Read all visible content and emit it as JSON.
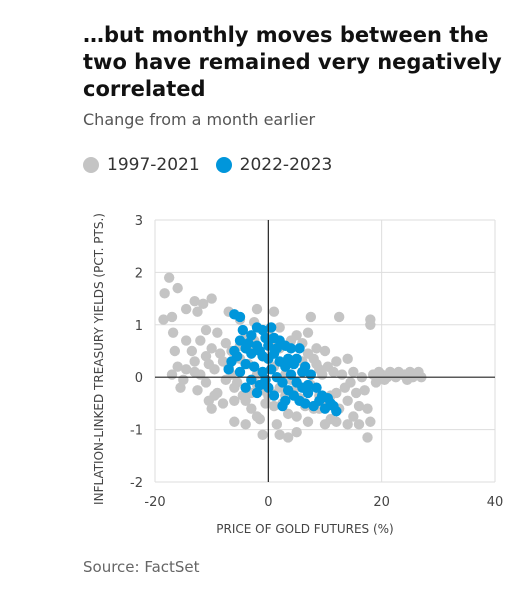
{
  "title": "…but monthly moves between the two have remained very negatively correlated",
  "subtitle": "Change from a month earlier",
  "source": "Source: FactSet",
  "colors": {
    "series_1997_2021": "#c4c4c4",
    "series_2022_2023": "#0096db"
  },
  "chart_data": {
    "type": "scatter",
    "title": "…but monthly moves between the two have remained very negatively correlated",
    "subtitle": "Change from a month earlier",
    "xlabel": "PRICE OF GOLD FUTURES (%)",
    "ylabel": "INFLATION-LINKED TREASURY YIELDS (PCT. PTS.)",
    "xlim": [
      -20,
      40
    ],
    "ylim": [
      -2,
      3
    ],
    "xticks": [
      "-20",
      "0",
      "20",
      "40"
    ],
    "yticks": [
      "3",
      "2",
      "1",
      "0",
      "-1",
      "-2"
    ],
    "grid": true,
    "legend_position": "top-left",
    "series": [
      {
        "name": "1997-2021",
        "color": "#c4c4c4",
        "points": [
          [
            -17.5,
            1.9
          ],
          [
            -18.3,
            1.6
          ],
          [
            -16,
            1.7
          ],
          [
            -17,
            1.15
          ],
          [
            -18.5,
            1.1
          ],
          [
            -14.5,
            1.3
          ],
          [
            -13,
            1.45
          ],
          [
            -11.5,
            1.4
          ],
          [
            -16.8,
            0.85
          ],
          [
            -14.5,
            0.7
          ],
          [
            -13.5,
            0.5
          ],
          [
            -16.5,
            0.5
          ],
          [
            -12,
            0.7
          ],
          [
            -11,
            0.9
          ],
          [
            -10,
            0.55
          ],
          [
            -14.5,
            0.15
          ],
          [
            -17,
            0.05
          ],
          [
            -15.5,
            -0.2
          ],
          [
            -13,
            0.3
          ],
          [
            -12,
            0.05
          ],
          [
            -11,
            -0.1
          ],
          [
            -10.5,
            0.25
          ],
          [
            -9.5,
            0.15
          ],
          [
            -9,
            -0.3
          ],
          [
            -8,
            -0.5
          ],
          [
            -7,
            0.2
          ],
          [
            -10,
            -0.6
          ],
          [
            -6,
            -0.45
          ],
          [
            -6.5,
            0.5
          ],
          [
            -8.5,
            0.45
          ],
          [
            -5.5,
            -0.1
          ],
          [
            -5,
            0.6
          ],
          [
            -4.5,
            -0.35
          ],
          [
            -3.5,
            0.25
          ],
          [
            -3,
            -0.6
          ],
          [
            -2.5,
            0.7
          ],
          [
            -2,
            -0.15
          ],
          [
            -1.5,
            -0.8
          ],
          [
            -1,
            0.4
          ],
          [
            -0.5,
            -0.5
          ],
          [
            0,
            0.85
          ],
          [
            0.5,
            -0.3
          ],
          [
            1,
            0.2
          ],
          [
            1.5,
            -0.9
          ],
          [
            2,
            0.55
          ],
          [
            2.5,
            -0.5
          ],
          [
            3,
            0.05
          ],
          [
            3.5,
            -0.7
          ],
          [
            4,
            0.3
          ],
          [
            4.5,
            -0.25
          ],
          [
            5,
            0.8
          ],
          [
            5.5,
            -0.4
          ],
          [
            6,
            0.1
          ],
          [
            6.5,
            -0.55
          ],
          [
            7,
            0.45
          ],
          [
            7.5,
            -0.15
          ],
          [
            8,
            -0.6
          ],
          [
            8.5,
            0.25
          ],
          [
            9,
            -0.35
          ],
          [
            9.5,
            0.05
          ],
          [
            10,
            -0.5
          ],
          [
            10.5,
            0.2
          ],
          [
            11,
            -0.8
          ],
          [
            11.5,
            0.1
          ],
          [
            12,
            -0.3
          ],
          [
            12.5,
            -0.6
          ],
          [
            13,
            0.05
          ],
          [
            13.5,
            -0.2
          ],
          [
            14,
            -0.45
          ],
          [
            14.5,
            -0.1
          ],
          [
            15,
            0.1
          ],
          [
            15.5,
            -0.3
          ],
          [
            16,
            -0.55
          ],
          [
            16.5,
            0
          ],
          [
            17,
            -0.25
          ],
          [
            17.5,
            -0.6
          ],
          [
            18,
            -0.85
          ],
          [
            18.5,
            0.05
          ],
          [
            19,
            -0.1
          ],
          [
            20,
            0.05
          ],
          [
            21,
            0
          ],
          [
            22,
            0.05
          ],
          [
            23,
            0.1
          ],
          [
            24,
            0.05
          ],
          [
            25,
            0.1
          ],
          [
            26,
            0.05
          ],
          [
            27,
            0
          ],
          [
            20.5,
            -0.05
          ],
          [
            21.5,
            0.1
          ],
          [
            22.5,
            0
          ],
          [
            23.5,
            0.05
          ],
          [
            24.5,
            -0.05
          ],
          [
            25.5,
            0
          ],
          [
            26.5,
            0.1
          ],
          [
            19.5,
            0.1
          ],
          [
            18,
            1.1
          ],
          [
            18,
            1
          ],
          [
            12.5,
            1.15
          ],
          [
            7.5,
            1.15
          ],
          [
            7,
            0.85
          ],
          [
            1,
            1.25
          ],
          [
            -2,
            1.3
          ],
          [
            -2.5,
            1.05
          ],
          [
            -5,
            1.1
          ],
          [
            -7,
            1.25
          ],
          [
            -10,
            1.5
          ],
          [
            -12.5,
            1.25
          ],
          [
            -1,
            -1.1
          ],
          [
            2,
            -1.1
          ],
          [
            3.5,
            -1.15
          ],
          [
            5,
            -1.05
          ],
          [
            -4,
            -0.9
          ],
          [
            -6,
            -0.85
          ],
          [
            17.5,
            -1.15
          ],
          [
            15,
            -0.75
          ],
          [
            14,
            -0.9
          ],
          [
            11,
            -0.35
          ],
          [
            9,
            0.15
          ],
          [
            8.5,
            0.55
          ],
          [
            6,
            0.65
          ],
          [
            4,
            0.7
          ],
          [
            2,
            0.95
          ],
          [
            0.5,
            0.6
          ],
          [
            -3,
            0.5
          ],
          [
            -4,
            0.75
          ],
          [
            -7.5,
            0.65
          ],
          [
            -9,
            0.85
          ],
          [
            -6,
            -0.2
          ],
          [
            -7.5,
            -0.05
          ],
          [
            -9.5,
            -0.35
          ],
          [
            -4,
            -0.45
          ],
          [
            -2,
            -0.75
          ],
          [
            -1,
            -0.25
          ],
          [
            1,
            -0.55
          ],
          [
            3,
            -0.35
          ],
          [
            5,
            -0.75
          ],
          [
            7,
            -0.85
          ],
          [
            9,
            -0.6
          ],
          [
            10,
            -0.9
          ],
          [
            12,
            -0.85
          ],
          [
            16,
            -0.9
          ],
          [
            14,
            0.35
          ],
          [
            12,
            0.3
          ],
          [
            10,
            0.5
          ],
          [
            8,
            0.35
          ],
          [
            6,
            0.3
          ],
          [
            4,
            -0.05
          ],
          [
            2,
            -0.2
          ],
          [
            0,
            -0.35
          ],
          [
            -2,
            0.05
          ],
          [
            -3,
            -0.3
          ],
          [
            -5,
            0.35
          ],
          [
            -6.5,
            0.05
          ],
          [
            -8,
            0.3
          ],
          [
            -11,
            0.4
          ],
          [
            -13,
            0.1
          ],
          [
            -16,
            0.2
          ],
          [
            -15,
            -0.05
          ],
          [
            -12.5,
            -0.25
          ],
          [
            -10.5,
            -0.45
          ]
        ]
      },
      {
        "name": "2022-2023",
        "color": "#0096db",
        "points": [
          [
            -6,
            1.2
          ],
          [
            -5,
            1.15
          ],
          [
            -4.5,
            0.9
          ],
          [
            -3,
            0.8
          ],
          [
            -2,
            0.95
          ],
          [
            -1,
            0.9
          ],
          [
            -0.5,
            0.75
          ],
          [
            0,
            0.6
          ],
          [
            -4,
            0.55
          ],
          [
            -5.5,
            0.4
          ],
          [
            -6.5,
            0.3
          ],
          [
            -7,
            0.15
          ],
          [
            -5,
            0.1
          ],
          [
            -4,
            0.25
          ],
          [
            -3,
            0.45
          ],
          [
            -2.5,
            0.2
          ],
          [
            -1.5,
            0.5
          ],
          [
            -1,
            0.1
          ],
          [
            0,
            0.35
          ],
          [
            0.5,
            0.15
          ],
          [
            1,
            0.45
          ],
          [
            1.5,
            0
          ],
          [
            2,
            0.3
          ],
          [
            2.5,
            -0.1
          ],
          [
            3,
            0.2
          ],
          [
            3.5,
            -0.25
          ],
          [
            4,
            0.05
          ],
          [
            4.5,
            -0.35
          ],
          [
            5,
            -0.1
          ],
          [
            5.5,
            -0.45
          ],
          [
            6,
            -0.2
          ],
          [
            6.5,
            -0.5
          ],
          [
            7,
            -0.3
          ],
          [
            8,
            -0.55
          ],
          [
            9,
            -0.45
          ],
          [
            10,
            -0.6
          ],
          [
            11,
            -0.5
          ],
          [
            12,
            -0.65
          ],
          [
            11.5,
            -0.55
          ],
          [
            8.5,
            -0.2
          ],
          [
            7.5,
            0.05
          ],
          [
            6,
            0.1
          ],
          [
            5,
            0.35
          ],
          [
            4,
            0.55
          ],
          [
            3,
            0.6
          ],
          [
            2,
            0.7
          ],
          [
            1,
            0.75
          ],
          [
            -0.5,
            -0.05
          ],
          [
            -1.5,
            -0.15
          ],
          [
            -3,
            -0.05
          ],
          [
            -4,
            -0.2
          ],
          [
            -2,
            -0.3
          ],
          [
            0,
            -0.2
          ],
          [
            1,
            -0.35
          ],
          [
            2.5,
            -0.55
          ],
          [
            3,
            -0.45
          ],
          [
            4.5,
            0.25
          ],
          [
            5.5,
            0.55
          ],
          [
            -3.5,
            0.65
          ],
          [
            -2,
            0.6
          ],
          [
            0.5,
            0.95
          ],
          [
            1.5,
            0.55
          ],
          [
            -1,
            0.4
          ],
          [
            -5,
            0.7
          ],
          [
            -6,
            0.5
          ],
          [
            3.5,
            0.35
          ],
          [
            6.5,
            0.2
          ],
          [
            7,
            -0.15
          ],
          [
            9.5,
            -0.35
          ],
          [
            10.5,
            -0.4
          ]
        ]
      }
    ]
  }
}
